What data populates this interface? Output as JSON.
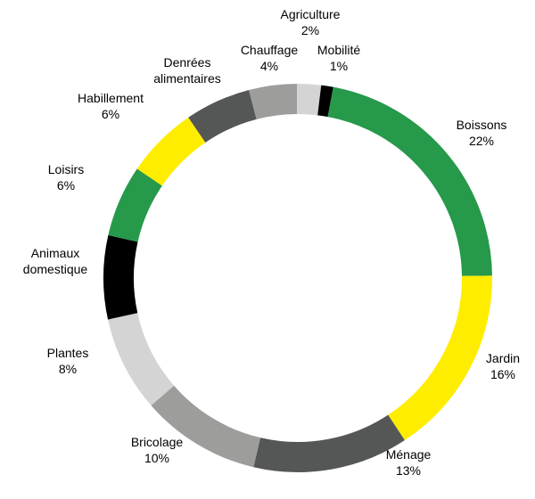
{
  "chart_data": {
    "type": "pie",
    "variant": "donut",
    "title": "",
    "legend": "none",
    "slices": [
      {
        "label": "Boissons",
        "value_label": "22%",
        "value": 22,
        "color": "#26994a"
      },
      {
        "label": "Jardin",
        "value_label": "16%",
        "value": 16,
        "color": "#ffed00"
      },
      {
        "label": "Ménage",
        "value_label": "13%",
        "value": 13,
        "color": "#555756"
      },
      {
        "label": "Bricolage",
        "value_label": "10%",
        "value": 10,
        "color": "#9d9d9c"
      },
      {
        "label": "Plantes",
        "value_label": "8%",
        "value": 8,
        "color": "#d4d4d4"
      },
      {
        "label": "Animaux domestique",
        "label_lines": [
          "Animaux",
          "domestique"
        ],
        "value_label": "",
        "value": 7,
        "color": "#000000"
      },
      {
        "label": "Loisirs",
        "value_label": "6%",
        "value": 6,
        "color": "#26994a"
      },
      {
        "label": "Habillement",
        "value_label": "6%",
        "value": 6,
        "color": "#ffed00"
      },
      {
        "label": "Denrées alimentaires",
        "label_lines": [
          "Denrées",
          "alimentaires"
        ],
        "value_label": "",
        "value": 5.5,
        "color": "#555756"
      },
      {
        "label": "Chauffage",
        "value_label": "4%",
        "value": 4,
        "color": "#9d9d9c"
      },
      {
        "label": "Agriculture",
        "value_label": "2%",
        "value": 2,
        "color": "#d4d4d4"
      },
      {
        "label": "Mobilité",
        "value_label": "1%",
        "value": 1,
        "color": "#000000"
      }
    ]
  }
}
